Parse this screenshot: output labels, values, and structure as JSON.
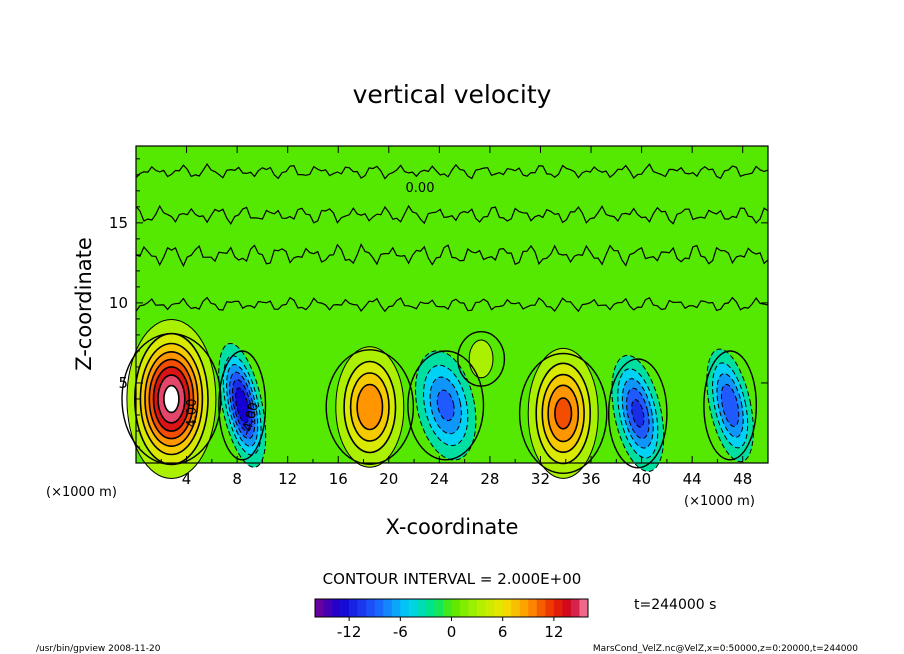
{
  "chart_data": {
    "type": "heatmap",
    "title": "vertical velocity",
    "xlabel": "X-coordinate",
    "ylabel": "Z-coordinate",
    "x_unit": "(×1000 m)",
    "z_unit": "(×1000 m)",
    "xlim": [
      0,
      50
    ],
    "ylim": [
      0,
      19.8
    ],
    "x_ticks": [
      4,
      8,
      12,
      16,
      20,
      24,
      28,
      32,
      36,
      40,
      44,
      48
    ],
    "y_ticks": [
      5,
      10,
      15
    ],
    "contour_interval_text": "CONTOUR INTERVAL = 2.000E+00",
    "contour_labels": [
      "0.00",
      "4.00",
      "-4.00"
    ],
    "time_label": "t=244000 s",
    "colorbar": {
      "ticks": [
        -12,
        -6,
        0,
        6,
        12
      ],
      "range": [
        -16,
        16
      ]
    },
    "cells": [
      {
        "x": 2.8,
        "z": 4.0,
        "sx": 1.7,
        "sz": 2.4,
        "amp": 17
      },
      {
        "x": 8.4,
        "z": 3.6,
        "sx": 0.8,
        "sz": 2.0,
        "amp": -14
      },
      {
        "x": 18.5,
        "z": 3.5,
        "sx": 1.5,
        "sz": 2.1,
        "amp": 10
      },
      {
        "x": 24.5,
        "z": 3.6,
        "sx": 1.3,
        "sz": 2.0,
        "amp": -9
      },
      {
        "x": 33.8,
        "z": 3.1,
        "sx": 1.5,
        "sz": 2.2,
        "amp": 11
      },
      {
        "x": 39.7,
        "z": 3.1,
        "sx": 1.0,
        "sz": 2.0,
        "amp": -11
      },
      {
        "x": 47.0,
        "z": 3.6,
        "sx": 0.9,
        "sz": 2.0,
        "amp": -10
      },
      {
        "x": 27.3,
        "z": 6.5,
        "sx": 0.8,
        "sz": 1.0,
        "amp": 4
      }
    ]
  },
  "footer": {
    "left": "/usr/bin/gpview  2008-11-20",
    "right": "MarsCond_VelZ.nc@VelZ,x=0:50000,z=0:20000,t=244000"
  },
  "colors": {
    "green": "#55e800",
    "red": "#e81400",
    "blue": "#1400e0",
    "white": "#ffffff"
  }
}
